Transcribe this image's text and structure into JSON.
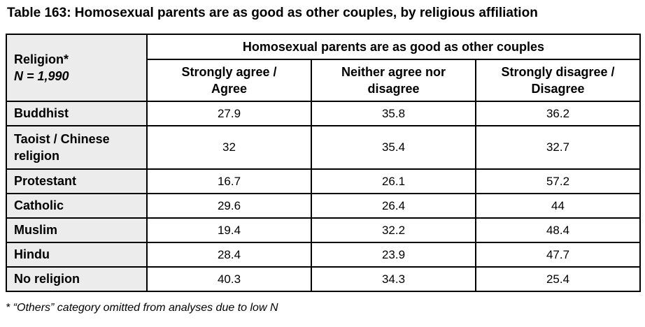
{
  "title": "Table 163: Homosexual parents are as good as other couples, by religious affiliation",
  "table": {
    "corner_header": {
      "line1": "Religion*",
      "line2": "N = 1,990"
    },
    "group_header": "Homosexual parents are as good as other couples",
    "columns": [
      "Strongly agree /\nAgree",
      "Neither agree nor\ndisagree",
      "Strongly disagree /\nDisagree"
    ],
    "rows": [
      {
        "label": "Buddhist",
        "values": [
          "27.9",
          "35.8",
          "36.2"
        ]
      },
      {
        "label": "Taoist / Chinese religion",
        "values": [
          "32",
          "35.4",
          "32.7"
        ]
      },
      {
        "label": "Protestant",
        "values": [
          "16.7",
          "26.1",
          "57.2"
        ]
      },
      {
        "label": "Catholic",
        "values": [
          "29.6",
          "26.4",
          "44"
        ]
      },
      {
        "label": "Muslim",
        "values": [
          "19.4",
          "32.2",
          "48.4"
        ]
      },
      {
        "label": "Hindu",
        "values": [
          "28.4",
          "23.9",
          "47.7"
        ]
      },
      {
        "label": "No religion",
        "values": [
          "40.3",
          "34.3",
          "25.4"
        ]
      }
    ]
  },
  "footnote": "* “Others” category omitted from analyses due to low N",
  "colors": {
    "label_column_bg": "#ECECEC",
    "border": "#000000",
    "text": "#000000",
    "page_bg": "#FFFFFF"
  }
}
